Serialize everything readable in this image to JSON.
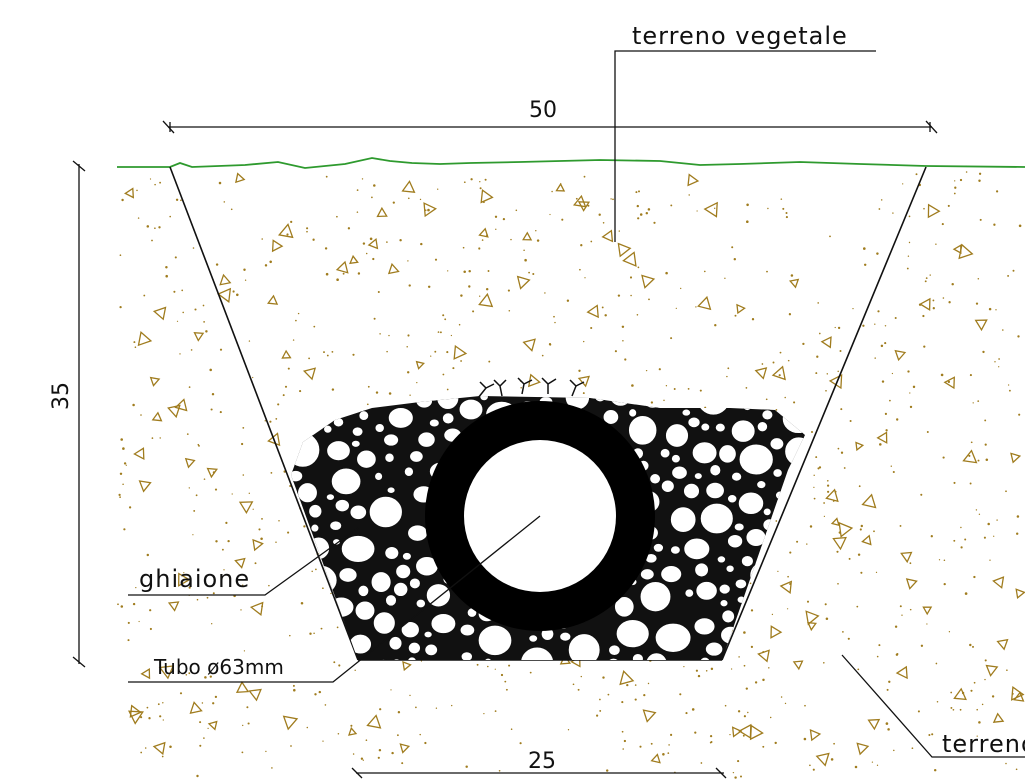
{
  "labels": {
    "topsoil": "terreno vegetale",
    "gravel": "ghiaione",
    "pipe": "Tubo ø63mm",
    "natural_soil": "terreno"
  },
  "dimensions": {
    "top_width": "50",
    "depth": "35",
    "bottom_width": "25"
  },
  "colors": {
    "ground_line": "#2e9a2e",
    "soil_speckle": "#a07c1e",
    "line": "#111111",
    "pipe": "#000000"
  }
}
